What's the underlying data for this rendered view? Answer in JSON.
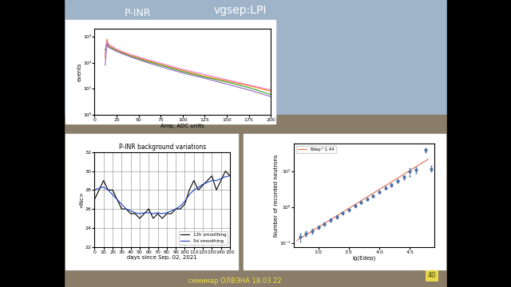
{
  "slide": {
    "title": "P-INR",
    "header": "vgsep:LPI",
    "footer": "семинар ОЛВЭНА 18.03.22",
    "page": "40"
  },
  "chart_data": [
    {
      "type": "line",
      "x_label": "Amp, ADC units",
      "y_label": "events",
      "log": "y",
      "x": [
        12,
        14,
        16,
        20,
        25,
        30,
        40,
        50,
        60,
        75,
        100,
        125,
        150,
        175,
        200
      ],
      "series": [
        {
          "color": "#ff7f0e",
          "values": [
            150,
            800,
            450,
            380,
            300,
            260,
            190,
            150,
            120,
            85,
            50,
            30,
            20,
            13,
            8
          ]
        },
        {
          "color": "#2ca02c",
          "values": [
            300,
            600,
            400,
            350,
            280,
            240,
            180,
            140,
            110,
            80,
            45,
            28,
            18,
            11,
            6
          ]
        },
        {
          "color": "#9467bd",
          "values": [
            80,
            500,
            380,
            330,
            270,
            230,
            170,
            130,
            100,
            70,
            40,
            25,
            15,
            9,
            5
          ]
        },
        {
          "color": "#e377c2",
          "values": [
            200,
            700,
            500,
            420,
            330,
            280,
            210,
            165,
            130,
            95,
            55,
            35,
            22,
            14,
            9
          ]
        }
      ],
      "xlim": [
        0,
        200
      ],
      "xticks": [
        0,
        25,
        50,
        75,
        100,
        125,
        150,
        175,
        200
      ],
      "ylim": [
        1,
        2000
      ],
      "yticks": [
        {
          "value": 1,
          "label": "10⁰"
        },
        {
          "value": 10,
          "label": "10¹"
        },
        {
          "value": 100,
          "label": "10²"
        },
        {
          "value": 1000,
          "label": "10³"
        }
      ],
      "grid": false
    },
    {
      "type": "line",
      "title": "P-INR background variations",
      "x_label": "days since Sep. 02, 2021",
      "y_label": "<Nc>",
      "x": [
        0,
        5,
        10,
        15,
        20,
        25,
        30,
        35,
        40,
        45,
        50,
        55,
        60,
        65,
        70,
        75,
        80,
        85,
        90,
        95,
        100,
        105,
        110,
        115,
        120,
        125,
        130,
        135,
        140,
        145,
        150
      ],
      "series": [
        {
          "name": "12h smoothing",
          "color": "#000000",
          "values": [
            27,
            28,
            29,
            28,
            28,
            27,
            26,
            26,
            25.5,
            25.5,
            25,
            25.5,
            26,
            25,
            25.5,
            25,
            25.5,
            25.5,
            26,
            26,
            26.5,
            28,
            29,
            28,
            28.5,
            29,
            29.5,
            28,
            29,
            30,
            29.5
          ]
        },
        {
          "name": "5d smoothing",
          "color": "#1f3fbf",
          "values": [
            28,
            28.2,
            28.3,
            28,
            27.5,
            27,
            26.5,
            26,
            25.8,
            25.6,
            25.5,
            25.6,
            25.6,
            25.5,
            25.6,
            25.5,
            25.6,
            25.8,
            26,
            26.3,
            26.8,
            27.5,
            28,
            28.3,
            28.6,
            28.8,
            29,
            29,
            29.2,
            29.4,
            29.5
          ]
        }
      ],
      "xlim": [
        0,
        150
      ],
      "xticks": [
        0,
        10,
        20,
        30,
        40,
        50,
        60,
        70,
        80,
        90,
        100,
        110,
        120,
        130,
        140,
        150
      ],
      "ylim": [
        22,
        32
      ],
      "yticks": [
        22,
        24,
        26,
        28,
        30,
        32
      ],
      "grid": true,
      "legend": "lower right"
    },
    {
      "type": "scatter",
      "x_label": "lg(Edep)",
      "y_label": "Number of recorded neutrons",
      "log": "y",
      "series": [
        {
          "name": "Edep^1.44",
          "type": "line",
          "color": "#e07050",
          "x": [
            2.65,
            4.8
          ],
          "values": [
            0.12,
            22
          ]
        },
        {
          "type": "scatter",
          "color": "#4a6fa5",
          "marker": "o",
          "x": [
            2.7,
            2.8,
            2.9,
            3.0,
            3.1,
            3.2,
            3.3,
            3.4,
            3.5,
            3.6,
            3.7,
            3.8,
            3.9,
            4.0,
            4.1,
            4.2,
            4.3,
            4.4,
            4.5,
            4.6,
            4.75,
            4.85
          ],
          "values": [
            0.15,
            0.19,
            0.22,
            0.28,
            0.35,
            0.45,
            0.55,
            0.7,
            0.85,
            1.1,
            1.4,
            1.7,
            2.1,
            2.7,
            3.5,
            4.2,
            5.5,
            7,
            10,
            11,
            40,
            12
          ],
          "errors": [
            0.04,
            0.03,
            0.03,
            0.03,
            0.04,
            0.04,
            0.05,
            0.06,
            0.07,
            0.08,
            0.1,
            0.12,
            0.15,
            0.2,
            0.3,
            0.4,
            0.6,
            0.9,
            2.5,
            2,
            5,
            2
          ]
        }
      ],
      "xlim": [
        2.6,
        4.9
      ],
      "xticks": [
        3.0,
        3.5,
        4.0,
        4.5
      ],
      "ylim": [
        0.08,
        60
      ],
      "yticks": [
        {
          "value": 0.1,
          "label": "10⁻¹"
        },
        {
          "value": 1,
          "label": "10⁰"
        },
        {
          "value": 10,
          "label": "10¹"
        }
      ],
      "grid": false,
      "legend": "upper left"
    }
  ]
}
